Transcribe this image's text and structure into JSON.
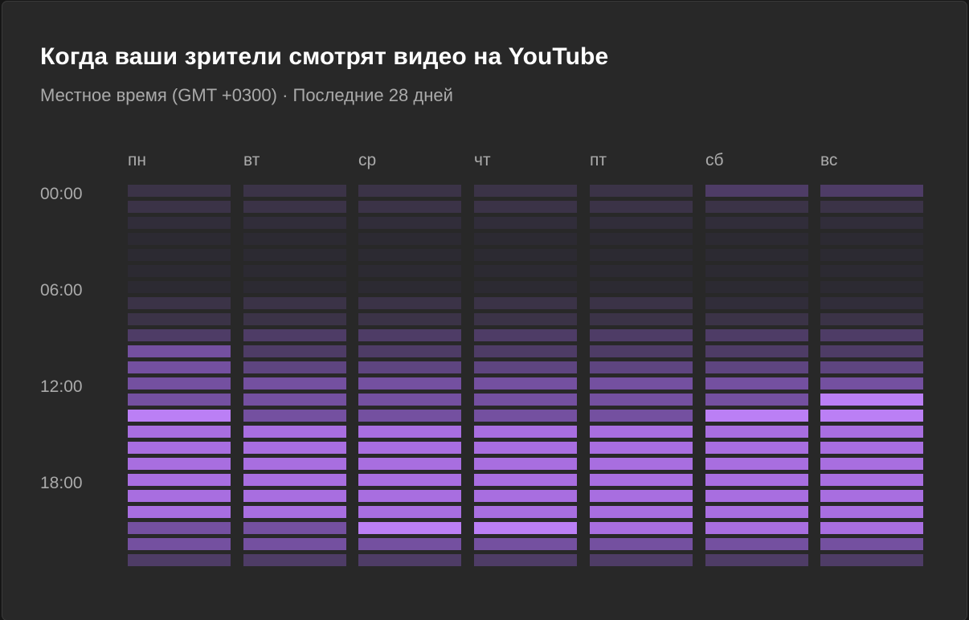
{
  "card": {
    "title": "Когда ваши зрители смотрят видео на YouTube",
    "subtitle": "Местное время (GMT +0300) · Последние 28 дней"
  },
  "chart_data": {
    "type": "heatmap",
    "days": [
      "пн",
      "вт",
      "ср",
      "чт",
      "пт",
      "сб",
      "вс"
    ],
    "hour_tick_labels": [
      "00:00",
      "06:00",
      "12:00",
      "18:00"
    ],
    "hours": [
      0,
      1,
      2,
      3,
      4,
      5,
      6,
      7,
      8,
      9,
      10,
      11,
      12,
      13,
      14,
      15,
      16,
      17,
      18,
      19,
      20,
      21,
      22,
      23
    ],
    "intensity_levels": {
      "0": "#2c2a32",
      "1": "#312d3a",
      "2": "#3b3347",
      "3": "#4e3c66",
      "4": "#5e4580",
      "5": "#7450a0",
      "6": "#8a5cc0",
      "7": "#a86ee0",
      "8": "#bb7ff5"
    },
    "intensity": [
      [
        2,
        2,
        2,
        2,
        2,
        3,
        3
      ],
      [
        2,
        2,
        2,
        2,
        2,
        2,
        2
      ],
      [
        1,
        1,
        1,
        1,
        1,
        1,
        1
      ],
      [
        0,
        0,
        0,
        0,
        0,
        0,
        0
      ],
      [
        0,
        0,
        0,
        0,
        0,
        0,
        0
      ],
      [
        0,
        0,
        0,
        0,
        0,
        0,
        0
      ],
      [
        0,
        0,
        0,
        0,
        0,
        0,
        0
      ],
      [
        2,
        2,
        2,
        2,
        2,
        1,
        1
      ],
      [
        2,
        2,
        2,
        2,
        2,
        2,
        2
      ],
      [
        3,
        3,
        3,
        3,
        3,
        3,
        3
      ],
      [
        5,
        3,
        3,
        3,
        3,
        3,
        3
      ],
      [
        5,
        4,
        4,
        4,
        4,
        4,
        4
      ],
      [
        5,
        5,
        5,
        5,
        5,
        5,
        5
      ],
      [
        5,
        5,
        5,
        5,
        5,
        5,
        8
      ],
      [
        8,
        5,
        5,
        5,
        5,
        8,
        8
      ],
      [
        7,
        7,
        7,
        7,
        7,
        7,
        7
      ],
      [
        7,
        7,
        7,
        7,
        7,
        7,
        7
      ],
      [
        7,
        7,
        7,
        7,
        7,
        7,
        7
      ],
      [
        7,
        7,
        7,
        7,
        7,
        7,
        7
      ],
      [
        7,
        7,
        7,
        7,
        7,
        7,
        7
      ],
      [
        7,
        7,
        7,
        7,
        7,
        7,
        7
      ],
      [
        5,
        5,
        8,
        8,
        7,
        7,
        7
      ],
      [
        5,
        5,
        5,
        5,
        5,
        5,
        5
      ],
      [
        3,
        3,
        3,
        3,
        3,
        3,
        3
      ]
    ],
    "grid": false,
    "legend": "none"
  }
}
